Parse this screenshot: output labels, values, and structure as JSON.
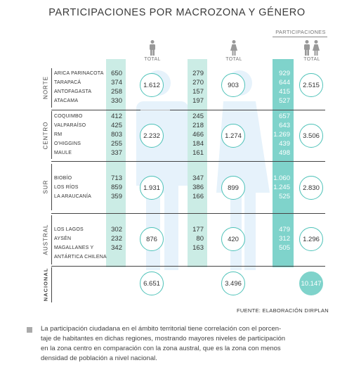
{
  "chart_data": {
    "type": "table",
    "title": "PARTICIPACIONES POR MACROZONA Y GÉNERO",
    "header_participaciones": "PARTICIPACIONES",
    "total_label": "TOTAL",
    "zones": [
      {
        "name": "NORTE",
        "regions": [
          {
            "name": "ARICA PARINACOTA",
            "male": "650",
            "female": "279",
            "total": "929"
          },
          {
            "name": "TARAPACÁ",
            "male": "374",
            "female": "270",
            "total": "644"
          },
          {
            "name": "ANTOFAGASTA",
            "male": "258",
            "female": "157",
            "total": "415"
          },
          {
            "name": "ATACAMA",
            "male": "330",
            "female": "197",
            "total": "527"
          }
        ],
        "male_total": "1.612",
        "female_total": "903",
        "total": "2.515"
      },
      {
        "name": "CENTRO",
        "regions": [
          {
            "name": "COQUIMBO",
            "male": "412",
            "female": "245",
            "total": "657"
          },
          {
            "name": "VALPARAÍSO",
            "male": "425",
            "female": "218",
            "total": "643"
          },
          {
            "name": "RM",
            "male": "803",
            "female": "466",
            "total": "1.269"
          },
          {
            "name": "O'HIGGINS",
            "male": "255",
            "female": "184",
            "total": "439"
          },
          {
            "name": "MAULE",
            "male": "337",
            "female": "161",
            "total": "498"
          }
        ],
        "male_total": "2.232",
        "female_total": "1.274",
        "total": "3.506"
      },
      {
        "name": "SUR",
        "regions": [
          {
            "name": "BIOBÍO",
            "male": "713",
            "female": "347",
            "total": "1.060"
          },
          {
            "name": "LOS RÍOS",
            "male": "859",
            "female": "386",
            "total": "1.245"
          },
          {
            "name": "LA ARAUCANÍA",
            "male": "359",
            "female": "166",
            "total": "525"
          }
        ],
        "male_total": "1.931",
        "female_total": "899",
        "total": "2.830"
      },
      {
        "name": "AUSTRAL",
        "regions": [
          {
            "name": "LOS LAGOS",
            "male": "302",
            "female": "177",
            "total": "479"
          },
          {
            "name": "AYSÉN",
            "male": "232",
            "female": "80",
            "total": "312"
          },
          {
            "name": "MAGALLANES Y",
            "male": "342",
            "female": "163",
            "total": "505"
          },
          {
            "name": "ANTÁRTICA CHILENA",
            "male": "",
            "female": "",
            "total": ""
          }
        ],
        "male_total": "876",
        "female_total": "420",
        "total": "1.296"
      }
    ],
    "nacional": {
      "name": "NACIONAL",
      "male_total": "6.651",
      "female_total": "3.496",
      "total": "10.147"
    },
    "source": "FUENTE: ELABORACIÓN DIRPLAN"
  },
  "note": {
    "line1": "La participación ciudadana en el ámbito territorial tiene correlación con el porcen-",
    "line2": "taje de habitantes en dichas regiones, mostrando mayores niveles de participación",
    "line3": "en la zona centro en comparación con la zona austral, que es la zona con menos",
    "line4": "densidad de población a nivel nacional."
  },
  "colors": {
    "accent": "#7fd3cb",
    "light": "#cbece5",
    "border": "#4dc2b8"
  }
}
